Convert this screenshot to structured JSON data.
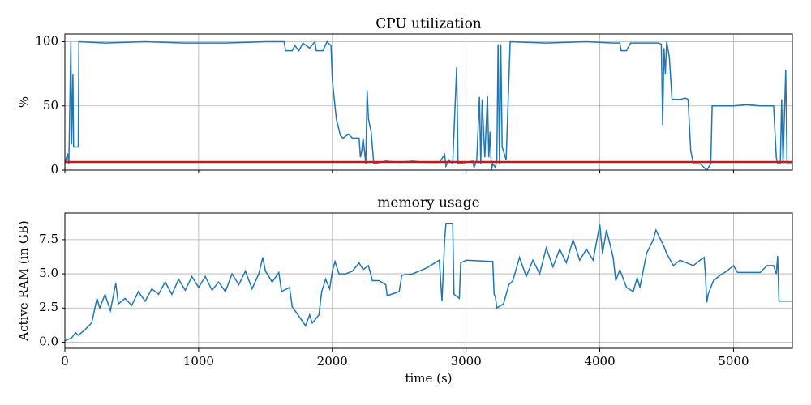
{
  "chart_data": [
    {
      "type": "line",
      "title": "CPU utilization",
      "ylabel": "%",
      "xlim": [
        0,
        5440
      ],
      "ylim": [
        0,
        106
      ],
      "xticks": [
        0,
        1000,
        2000,
        3000,
        4000,
        5000
      ],
      "yticks": [
        0,
        50,
        100
      ],
      "grid": true,
      "series": [
        {
          "color": "#1f77b4",
          "x": [
            0,
            20,
            30,
            45,
            50,
            60,
            65,
            90,
            100,
            105,
            300,
            600,
            900,
            1200,
            1500,
            1640,
            1650,
            1700,
            1720,
            1750,
            1780,
            1830,
            1870,
            1880,
            1930,
            1960,
            1990,
            2000,
            2010,
            2030,
            2060,
            2080,
            2120,
            2150,
            2200,
            2210,
            2220,
            2230,
            2250,
            2260,
            2270,
            2290,
            2310,
            2400,
            2500,
            2600,
            2700,
            2800,
            2840,
            2850,
            2870,
            2900,
            2930,
            2940,
            3000,
            3050,
            3060,
            3080,
            3100,
            3110,
            3120,
            3140,
            3160,
            3170,
            3180,
            3190,
            3200,
            3220,
            3230,
            3240,
            3250,
            3260,
            3270,
            3300,
            3330,
            3600,
            3900,
            4100,
            4150,
            4160,
            4200,
            4230,
            4440,
            4460,
            4470,
            4480,
            4490,
            4500,
            4520,
            4540,
            4600,
            4640,
            4660,
            4680,
            4700,
            4720,
            4750,
            4800,
            4830,
            4840,
            5000,
            5100,
            5200,
            5300,
            5320,
            5330,
            5350,
            5360,
            5370,
            5390,
            5400,
            5440
          ],
          "values": [
            5,
            13,
            5,
            100,
            20,
            75,
            18,
            18,
            18,
            100,
            99,
            100,
            99,
            99,
            100,
            100,
            93,
            93,
            97,
            93,
            99,
            95,
            100,
            93,
            93,
            100,
            97,
            70,
            60,
            40,
            27,
            25,
            28,
            25,
            25,
            10,
            15,
            25,
            5,
            62,
            40,
            30,
            5,
            7,
            6,
            7,
            6,
            6,
            12,
            3,
            8,
            5,
            80,
            5,
            6,
            7,
            2,
            8,
            57,
            5,
            55,
            10,
            58,
            10,
            30,
            0,
            5,
            2,
            8,
            98,
            5,
            98,
            18,
            8,
            100,
            99,
            100,
            99,
            99,
            93,
            93,
            99,
            99,
            98,
            35,
            95,
            75,
            100,
            88,
            55,
            55,
            56,
            55,
            15,
            5,
            5,
            5,
            0,
            5,
            50,
            50,
            51,
            50,
            50,
            10,
            5,
            5,
            55,
            5,
            78,
            5,
            5
          ]
        },
        {
          "color": "#ff0000",
          "x": [
            0,
            5440
          ],
          "values": [
            6.4,
            6.4
          ]
        }
      ]
    },
    {
      "type": "line",
      "title": "memory usage",
      "ylabel": "Active RAM (in GB)",
      "xlabel": "time (s)",
      "xlim": [
        0,
        5440
      ],
      "ylim": [
        -0.45,
        9.45
      ],
      "xticks": [
        0,
        1000,
        2000,
        3000,
        4000,
        5000
      ],
      "yticks": [
        {
          "value": 0,
          "label": "0.0"
        },
        2.5,
        {
          "value": 5,
          "label": "5.0"
        },
        7.5
      ],
      "grid": true,
      "series": [
        {
          "color": "#1f77b4",
          "x": [
            0,
            50,
            80,
            100,
            150,
            200,
            240,
            260,
            300,
            340,
            380,
            400,
            450,
            500,
            550,
            600,
            650,
            700,
            750,
            800,
            850,
            900,
            950,
            1000,
            1050,
            1100,
            1150,
            1200,
            1250,
            1300,
            1350,
            1400,
            1450,
            1480,
            1500,
            1550,
            1600,
            1620,
            1680,
            1700,
            1750,
            1800,
            1830,
            1850,
            1900,
            1920,
            1950,
            1980,
            2000,
            2020,
            2050,
            2100,
            2150,
            2200,
            2230,
            2270,
            2300,
            2350,
            2400,
            2410,
            2500,
            2520,
            2600,
            2700,
            2800,
            2820,
            2840,
            2850,
            2900,
            2910,
            2950,
            2960,
            3000,
            3200,
            3210,
            3220,
            3230,
            3280,
            3320,
            3350,
            3400,
            3450,
            3500,
            3550,
            3600,
            3650,
            3700,
            3750,
            3800,
            3850,
            3900,
            3950,
            4000,
            4020,
            4050,
            4080,
            4100,
            4120,
            4150,
            4200,
            4250,
            4280,
            4300,
            4350,
            4400,
            4420,
            4450,
            4480,
            4500,
            4550,
            4600,
            4700,
            4750,
            4780,
            4790,
            4800,
            4810,
            4850,
            4900,
            4950,
            5000,
            5030,
            5100,
            5200,
            5250,
            5300,
            5320,
            5330,
            5340,
            5440
          ],
          "values": [
            0.1,
            0.3,
            0.7,
            0.5,
            0.9,
            1.4,
            3.2,
            2.5,
            3.5,
            2.3,
            4.3,
            2.8,
            3.2,
            2.7,
            3.7,
            3.0,
            3.9,
            3.5,
            4.4,
            3.5,
            4.6,
            3.8,
            4.8,
            4.0,
            4.8,
            3.8,
            4.4,
            3.7,
            5.0,
            4.2,
            5.2,
            3.9,
            5.0,
            6.2,
            5.2,
            4.4,
            5.1,
            3.7,
            4.0,
            2.6,
            1.9,
            1.2,
            2.0,
            1.4,
            2.0,
            3.7,
            4.6,
            3.9,
            5.2,
            5.9,
            5.0,
            5.0,
            5.2,
            5.8,
            5.3,
            5.6,
            4.5,
            4.5,
            4.2,
            3.4,
            3.7,
            4.9,
            5.0,
            5.4,
            6.0,
            3.0,
            7.5,
            8.7,
            8.7,
            3.5,
            3.2,
            5.8,
            6.0,
            5.9,
            3.5,
            3.3,
            2.5,
            2.8,
            4.2,
            4.5,
            6.2,
            4.8,
            6.0,
            5.0,
            6.9,
            5.5,
            6.8,
            5.8,
            7.5,
            6.0,
            6.8,
            6.0,
            8.6,
            6.5,
            8.2,
            7.0,
            6.2,
            4.5,
            5.3,
            4.0,
            3.7,
            4.7,
            4.0,
            6.5,
            7.5,
            8.2,
            7.6,
            7.0,
            6.5,
            5.6,
            6.0,
            5.6,
            6.0,
            6.2,
            5.0,
            2.9,
            3.5,
            4.5,
            4.9,
            5.2,
            5.6,
            5.1,
            5.1,
            5.1,
            5.6,
            5.6,
            5.0,
            6.3,
            3.0,
            3.0
          ]
        }
      ]
    }
  ]
}
